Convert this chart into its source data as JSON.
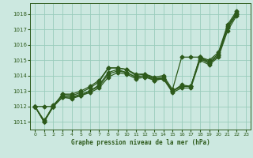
{
  "title": "Graphe pression niveau de la mer (hPa)",
  "bg_color": "#cce8e0",
  "grid_color": "#99ccbb",
  "line_color": "#2d5a1b",
  "xlim": [
    -0.5,
    23.5
  ],
  "ylim": [
    1010.5,
    1018.7
  ],
  "yticks": [
    1011,
    1012,
    1013,
    1014,
    1015,
    1016,
    1017,
    1018
  ],
  "xticks": [
    0,
    1,
    2,
    3,
    4,
    5,
    6,
    7,
    8,
    9,
    10,
    11,
    12,
    13,
    14,
    15,
    16,
    17,
    18,
    19,
    20,
    21,
    22,
    23
  ],
  "series": [
    [
      1012.0,
      1011.0,
      1012.0,
      1012.8,
      1012.7,
      1012.9,
      1013.2,
      1013.6,
      1014.5,
      1014.5,
      1014.4,
      1014.0,
      1014.1,
      1013.8,
      1013.9,
      1013.0,
      1013.4,
      1013.3,
      1015.2,
      1014.9,
      1015.4,
      1017.2,
      1018.1
    ],
    [
      1012.0,
      1011.0,
      1012.1,
      1012.7,
      1012.6,
      1012.8,
      1013.0,
      1013.4,
      1014.2,
      1014.4,
      1014.2,
      1013.9,
      1014.0,
      1013.7,
      1013.8,
      1013.0,
      1013.3,
      1013.3,
      1015.2,
      1014.8,
      1015.3,
      1017.1,
      1018.0
    ],
    [
      1012.0,
      1011.0,
      1012.0,
      1012.6,
      1012.6,
      1012.7,
      1013.0,
      1013.3,
      1014.1,
      1014.3,
      1014.2,
      1013.9,
      1014.0,
      1013.8,
      1013.8,
      1013.0,
      1013.3,
      1013.3,
      1015.1,
      1014.8,
      1015.3,
      1017.1,
      1018.0
    ],
    [
      1012.0,
      1011.1,
      1012.0,
      1012.6,
      1012.5,
      1012.7,
      1012.9,
      1013.2,
      1013.9,
      1014.2,
      1014.1,
      1013.8,
      1013.9,
      1013.7,
      1013.8,
      1012.9,
      1013.2,
      1013.2,
      1015.0,
      1014.7,
      1015.2,
      1016.9,
      1017.9
    ]
  ],
  "steep_series": [
    1012.0,
    1012.0,
    1012.0,
    1012.8,
    1012.8,
    1013.0,
    1013.3,
    1013.7,
    1014.5,
    1014.5,
    1014.4,
    1014.1,
    1014.1,
    1013.9,
    1014.0,
    1013.1,
    1015.2,
    1015.2,
    1015.2,
    1015.0,
    1015.5,
    1017.3,
    1018.2
  ],
  "marker": "D",
  "markersize": 2.5,
  "linewidth": 0.9
}
